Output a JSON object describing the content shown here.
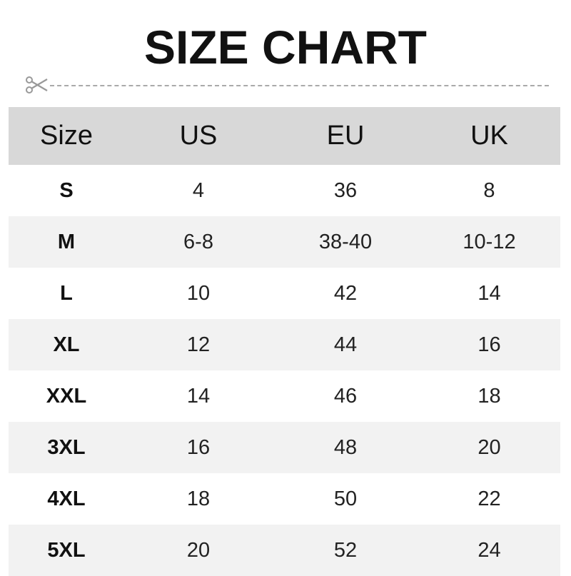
{
  "title": "SIZE CHART",
  "icons": {
    "cut": "scissors-icon"
  },
  "colors": {
    "header_bg": "#d8d8d8",
    "stripe_bg": "#f2f2f2",
    "dash": "#aaaaaa"
  },
  "table": {
    "headers": [
      "Size",
      "US",
      "EU",
      "UK"
    ],
    "rows": [
      [
        "S",
        "4",
        "36",
        "8"
      ],
      [
        "M",
        "6-8",
        "38-40",
        "10-12"
      ],
      [
        "L",
        "10",
        "42",
        "14"
      ],
      [
        "XL",
        "12",
        "44",
        "16"
      ],
      [
        "XXL",
        "14",
        "46",
        "18"
      ],
      [
        "3XL",
        "16",
        "48",
        "20"
      ],
      [
        "4XL",
        "18",
        "50",
        "22"
      ],
      [
        "5XL",
        "20",
        "52",
        "24"
      ]
    ]
  }
}
